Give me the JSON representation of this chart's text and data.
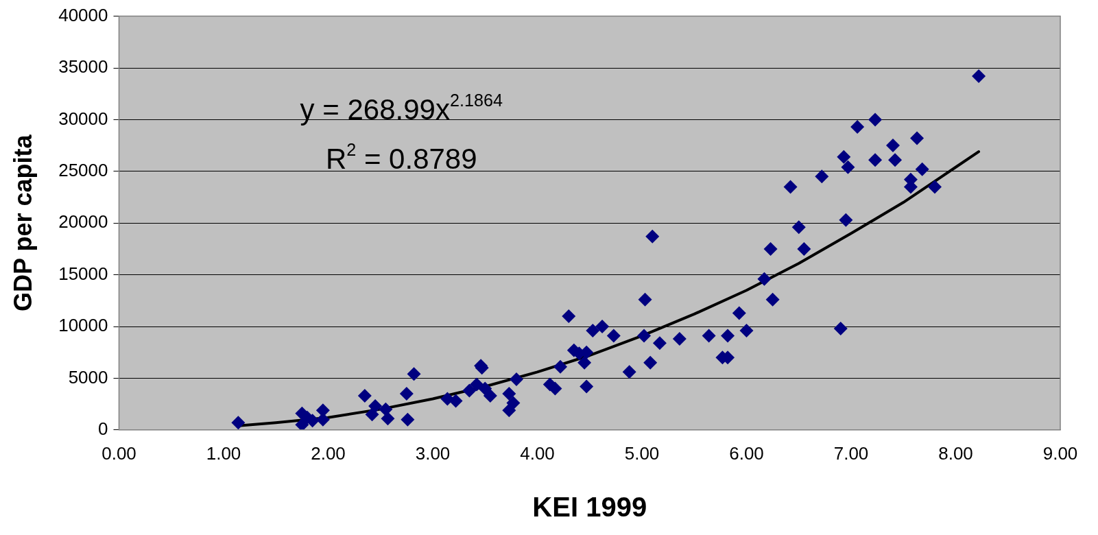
{
  "chart_data": {
    "type": "scatter",
    "xlabel": "KEI 1999",
    "ylabel": "GDP per capita",
    "xlim": [
      0,
      9
    ],
    "xticks": [
      {
        "value": 0,
        "label": "0.00"
      },
      {
        "value": 1,
        "label": "1.00"
      },
      {
        "value": 2,
        "label": "2.00"
      },
      {
        "value": 3,
        "label": "3.00"
      },
      {
        "value": 4,
        "label": "4.00"
      },
      {
        "value": 5,
        "label": "5.00"
      },
      {
        "value": 6,
        "label": "6.00"
      },
      {
        "value": 7,
        "label": "7.00"
      },
      {
        "value": 8,
        "label": "8.00"
      },
      {
        "value": 9,
        "label": "9.00"
      }
    ],
    "ylim": [
      0,
      40000
    ],
    "yticks": [
      0,
      5000,
      10000,
      15000,
      20000,
      25000,
      30000,
      35000,
      40000
    ],
    "grid": "y",
    "legend": false,
    "marker": "diamond",
    "annotations": [
      "y = 268.99x$^{2.1864}$",
      "R$^{2}$ = 0.8789"
    ],
    "series": [
      {
        "color": "#000080",
        "x": [
          1.14,
          1.75,
          1.75,
          1.8,
          1.85,
          1.95,
          1.95,
          2.35,
          2.42,
          2.45,
          2.55,
          2.57,
          2.75,
          2.76,
          2.82,
          3.14,
          3.22,
          3.35,
          3.42,
          3.46,
          3.47,
          3.5,
          3.55,
          3.73,
          3.73,
          3.77,
          3.8,
          4.12,
          4.17,
          4.22,
          4.3,
          4.35,
          4.4,
          4.45,
          4.47,
          4.47,
          4.53,
          4.62,
          4.73,
          4.88,
          5.02,
          5.03,
          5.08,
          5.1,
          5.17,
          5.36,
          5.64,
          5.77,
          5.82,
          5.82,
          5.93,
          6.0,
          6.17,
          6.23,
          6.25,
          6.42,
          6.5,
          6.55,
          6.72,
          6.9,
          6.93,
          6.95,
          6.97,
          7.06,
          7.23,
          7.23,
          7.4,
          7.42,
          7.57,
          7.57,
          7.63,
          7.68,
          7.8,
          8.22
        ],
        "values": [
          700,
          1600,
          500,
          1200,
          900,
          1900,
          1000,
          3300,
          1500,
          2300,
          2000,
          1100,
          3500,
          1000,
          5400,
          3000,
          2800,
          3800,
          4400,
          6200,
          6000,
          4000,
          3300,
          3500,
          1900,
          2600,
          4900,
          4400,
          4000,
          6100,
          11000,
          7700,
          7400,
          6500,
          7500,
          4200,
          9600,
          10000,
          9100,
          5600,
          9100,
          12600,
          6500,
          18700,
          8400,
          8800,
          9100,
          7000,
          7000,
          9100,
          11300,
          9600,
          14600,
          17500,
          12600,
          23500,
          19600,
          17500,
          24500,
          9800,
          26400,
          20300,
          25400,
          29300,
          30000,
          26100,
          27500,
          26100,
          24200,
          23500,
          28200,
          25200,
          23500,
          34200
        ]
      },
      {
        "type": "line",
        "color": "#000000",
        "marker": "none",
        "x": [
          1.14,
          1.5,
          2,
          2.5,
          3,
          3.5,
          4,
          4.5,
          5,
          5.5,
          6,
          6.5,
          7,
          7.5,
          8,
          8.22
        ],
        "values": [
          400,
          700,
          1200,
          2000,
          3000,
          4200,
          5600,
          7200,
          9100,
          11200,
          13500,
          16100,
          19000,
          22000,
          25400,
          26900
        ]
      }
    ]
  }
}
